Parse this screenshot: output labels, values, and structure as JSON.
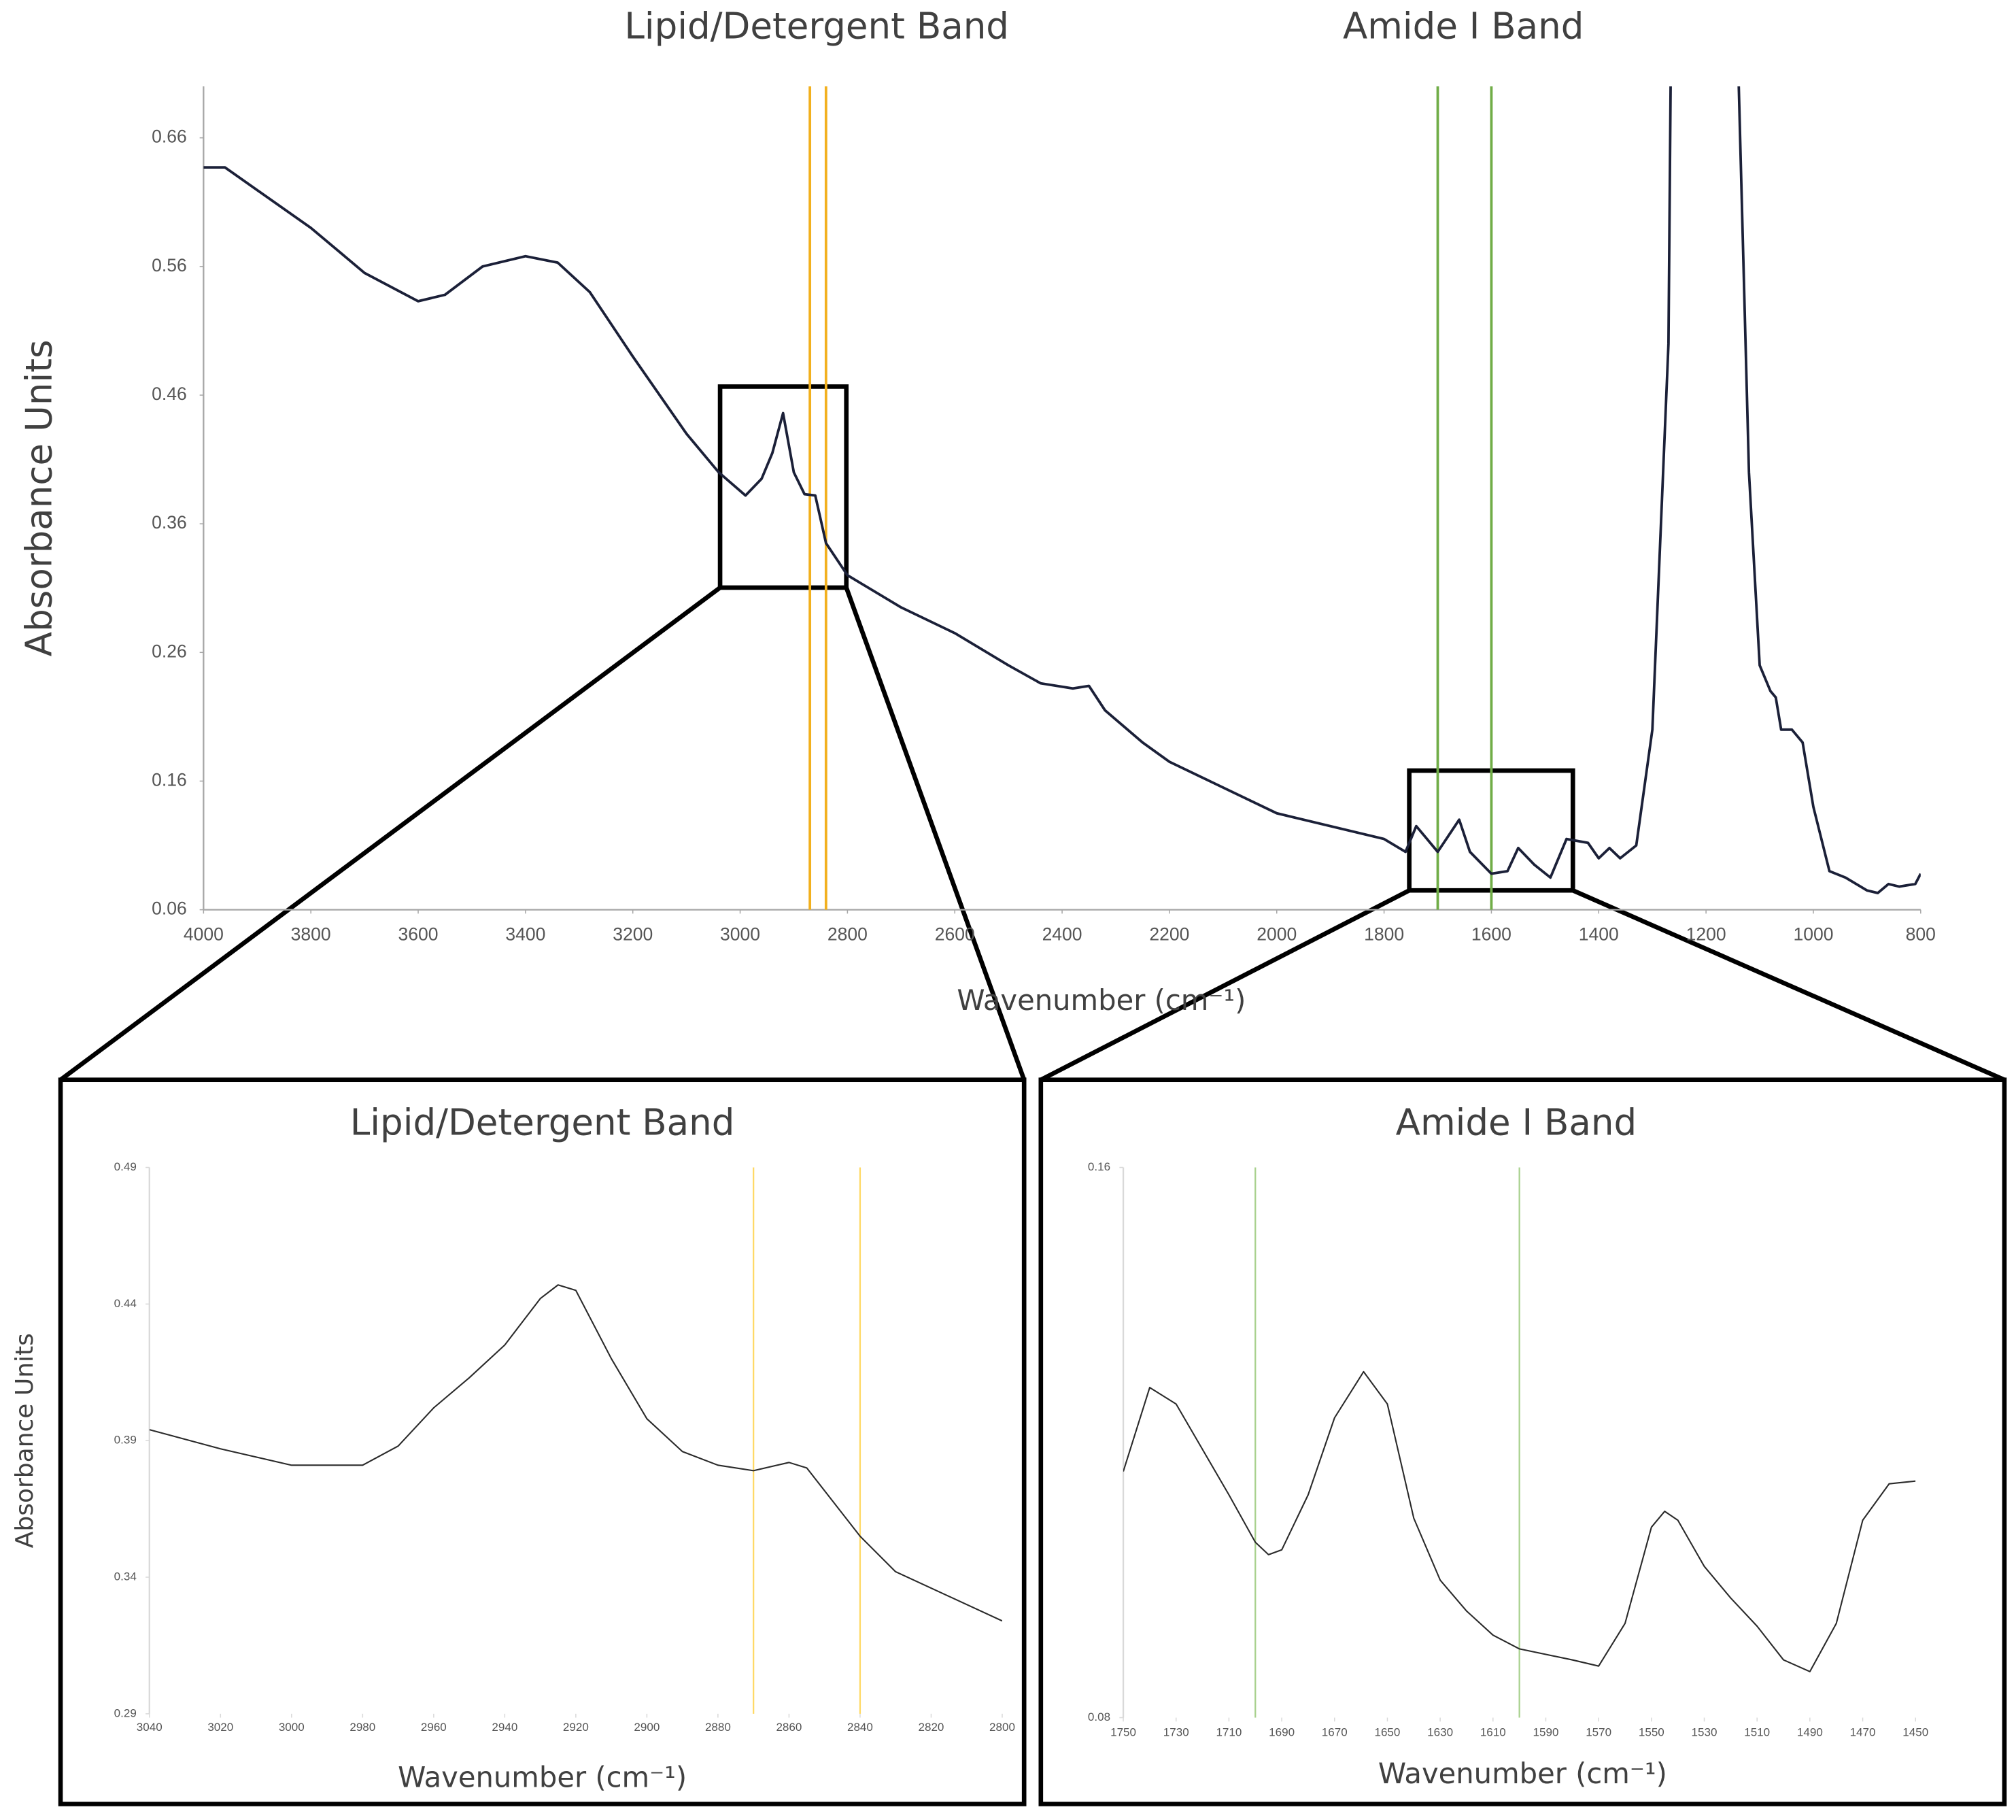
{
  "chart_data": [
    {
      "type": "line",
      "annotations": [
        "Lipid/Detergent Band",
        "Amide I Band"
      ],
      "ylabel": "Absorbance Units",
      "xlabel": "Wavenumber (cm⁻¹)",
      "xlim": [
        4000,
        800
      ],
      "xticks": [
        4000,
        3800,
        3600,
        3400,
        3200,
        3000,
        2800,
        2600,
        2400,
        2200,
        2000,
        1800,
        1600,
        1400,
        1200,
        1000,
        800
      ],
      "ylim": [
        0.06,
        0.7
      ],
      "yticks": [
        0.06,
        0.16,
        0.26,
        0.36,
        0.46,
        0.56,
        0.66
      ],
      "vlines": [
        {
          "values": [
            2870,
            2840
          ],
          "color": "#f2b01e"
        },
        {
          "values": [
            1700,
            1600
          ],
          "color": "#70ad47"
        }
      ],
      "series": [
        {
          "color": "#1b2038",
          "x": [
            4000,
            3960,
            3800,
            3700,
            3600,
            3550,
            3480,
            3400,
            3340,
            3280,
            3200,
            3100,
            3040,
            2990,
            2960,
            2940,
            2920,
            2900,
            2880,
            2860,
            2840,
            2800,
            2700,
            2600,
            2500,
            2440,
            2380,
            2350,
            2320,
            2250,
            2200,
            2100,
            2000,
            1900,
            1800,
            1760,
            1740,
            1720,
            1700,
            1660,
            1640,
            1600,
            1570,
            1550,
            1520,
            1490,
            1460,
            1420,
            1400,
            1380,
            1360,
            1330,
            1300,
            1270,
            1266,
            1200,
            1139,
            1120,
            1100,
            1080,
            1070,
            1060,
            1040,
            1020,
            1000,
            970,
            940,
            900,
            880,
            860,
            840,
            810,
            800
          ],
          "values": [
            0.637,
            0.637,
            0.59,
            0.555,
            0.533,
            0.538,
            0.56,
            0.568,
            0.563,
            0.54,
            0.49,
            0.43,
            0.4,
            0.382,
            0.395,
            0.415,
            0.446,
            0.4,
            0.383,
            0.382,
            0.345,
            0.32,
            0.295,
            0.275,
            0.25,
            0.236,
            0.232,
            0.234,
            0.215,
            0.19,
            0.175,
            0.155,
            0.135,
            0.125,
            0.115,
            0.105,
            0.125,
            0.115,
            0.105,
            0.13,
            0.105,
            0.088,
            0.09,
            0.108,
            0.095,
            0.085,
            0.115,
            0.112,
            0.1,
            0.108,
            0.1,
            0.11,
            0.2,
            0.5,
            0.7,
            null,
            0.7,
            0.4,
            0.25,
            0.23,
            0.225,
            0.2,
            0.2,
            0.19,
            0.14,
            0.09,
            0.085,
            0.075,
            0.073,
            0.08,
            0.078,
            0.08,
            0.088
          ]
        }
      ]
    },
    {
      "type": "line",
      "title": "Lipid/Detergent Band",
      "ylabel": "Absorbance Units",
      "xlabel": "Wavenumber (cm⁻¹)",
      "xlim": [
        3040,
        2800
      ],
      "xticks": [
        3040,
        3020,
        3000,
        2980,
        2960,
        2940,
        2920,
        2900,
        2880,
        2860,
        2840,
        2820,
        2800
      ],
      "ylim": [
        0.29,
        0.49
      ],
      "yticks": [
        0.29,
        0.34,
        0.39,
        0.44,
        0.49
      ],
      "vlines": [
        {
          "values": [
            2870,
            2840
          ],
          "color": "#ffd966"
        }
      ],
      "series": [
        {
          "color": "#2a2a2a",
          "x": [
            3040,
            3020,
            3000,
            2980,
            2970,
            2960,
            2950,
            2940,
            2930,
            2925,
            2920,
            2910,
            2900,
            2890,
            2880,
            2870,
            2860,
            2855,
            2840,
            2830,
            2820,
            2800
          ],
          "values": [
            0.394,
            0.387,
            0.381,
            0.381,
            0.388,
            0.402,
            0.413,
            0.425,
            0.442,
            0.447,
            0.445,
            0.42,
            0.398,
            0.386,
            0.381,
            0.379,
            0.382,
            0.38,
            0.355,
            0.342,
            0.336,
            0.324
          ]
        }
      ]
    },
    {
      "type": "line",
      "title": "Amide I Band",
      "xlabel": "Wavenumber (cm⁻¹)",
      "xlim": [
        1750,
        1450
      ],
      "xticks": [
        1750,
        1730,
        1710,
        1690,
        1670,
        1650,
        1630,
        1610,
        1590,
        1570,
        1550,
        1530,
        1510,
        1490,
        1470,
        1450
      ],
      "ylim": [
        0.08,
        0.16
      ],
      "yticks": [
        0.08,
        0.16
      ],
      "vlines": [
        {
          "values": [
            1700,
            1600
          ],
          "color": "#a9d18e"
        }
      ],
      "series": [
        {
          "color": "#2a2a2a",
          "x": [
            1750,
            1740,
            1730,
            1720,
            1710,
            1700,
            1695,
            1690,
            1680,
            1670,
            1659,
            1650,
            1640,
            1630,
            1620,
            1610,
            1600,
            1580,
            1570,
            1560,
            1550,
            1545,
            1540,
            1530,
            1520,
            1510,
            1500,
            1490,
            1480,
            1470,
            1460,
            1450
          ],
          "values": [
            0.1158,
            0.128,
            0.1256,
            0.119,
            0.1124,
            0.1055,
            0.1037,
            0.1044,
            0.1124,
            0.1236,
            0.1303,
            0.1256,
            0.109,
            0.1,
            0.0955,
            0.092,
            0.09,
            0.0884,
            0.0875,
            0.0937,
            0.1077,
            0.11,
            0.1087,
            0.102,
            0.0974,
            0.0933,
            0.0884,
            0.0867,
            0.0937,
            0.1087,
            0.114,
            0.1144
          ]
        }
      ]
    }
  ]
}
